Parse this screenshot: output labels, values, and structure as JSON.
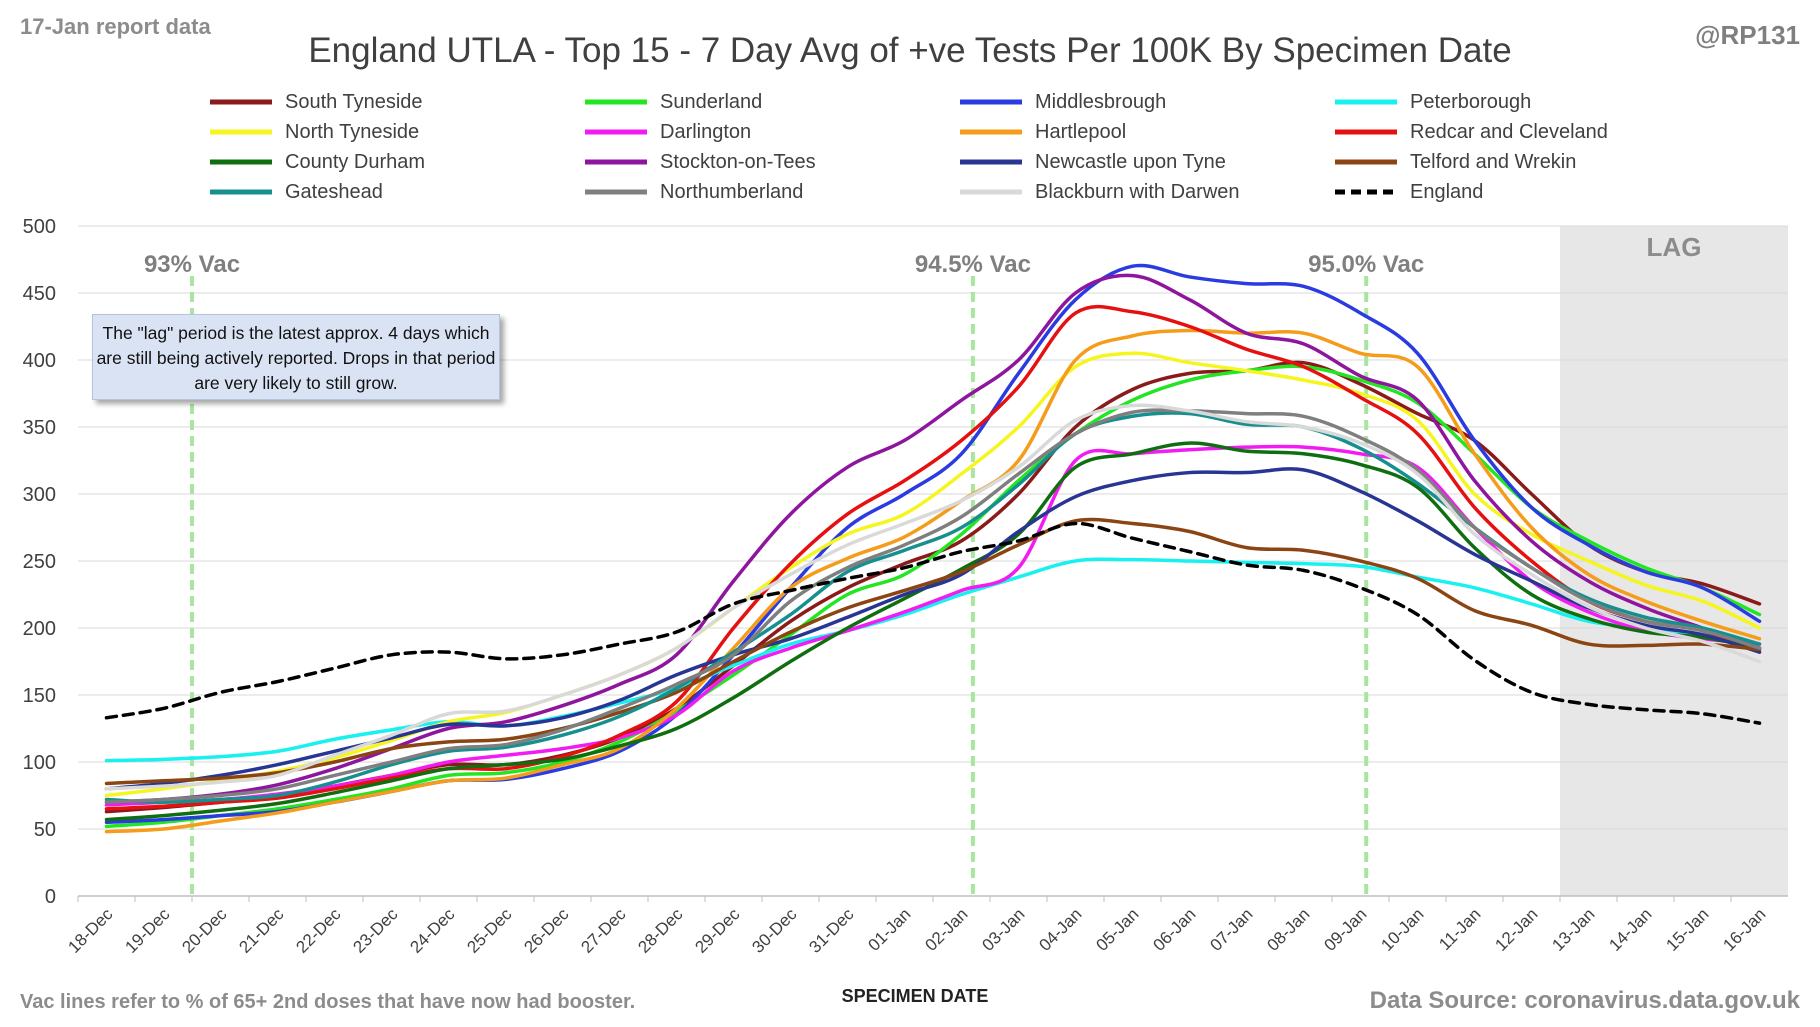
{
  "header": {
    "report_date": "17-Jan report data",
    "handle": "@RP131"
  },
  "footer": {
    "vac_note": "Vac lines refer to % of 65+ 2nd doses that have now had booster.",
    "source": "Data Source: coronavirus.data.gov.uk"
  },
  "note": "The \"lag\" period is the latest approx. 4 days which are still being actively reported.  Drops in that period are very likely to still grow.",
  "colors": {
    "grid": "#d9d9d9",
    "lag_shade": "#e7e7e7",
    "vac_line": "#a9e5a0",
    "annotation": "#8c8c8c"
  },
  "chart_data": {
    "type": "line",
    "title": "England UTLA - Top 15 - 7 Day Avg of +ve Tests Per 100K By Specimen Date",
    "xlabel": "SPECIMEN DATE",
    "ylabel": "",
    "ylim": [
      0,
      500
    ],
    "yticks": [
      0,
      50,
      100,
      150,
      200,
      250,
      300,
      350,
      400,
      450,
      500
    ],
    "grid": true,
    "legend_position": "top",
    "categories": [
      "18-Dec",
      "19-Dec",
      "20-Dec",
      "21-Dec",
      "22-Dec",
      "23-Dec",
      "24-Dec",
      "25-Dec",
      "26-Dec",
      "27-Dec",
      "28-Dec",
      "29-Dec",
      "30-Dec",
      "31-Dec",
      "01-Jan",
      "02-Jan",
      "03-Jan",
      "04-Jan",
      "05-Jan",
      "06-Jan",
      "07-Jan",
      "08-Jan",
      "09-Jan",
      "10-Jan",
      "11-Jan",
      "12-Jan",
      "13-Jan",
      "14-Jan",
      "15-Jan",
      "16-Jan"
    ],
    "vac_lines": [
      {
        "label": "93% Vac",
        "x": 19.5
      },
      {
        "label": "94.5% Vac",
        "x": 33.2
      },
      {
        "label": "95.0% Vac",
        "x": 40.1
      }
    ],
    "lag": {
      "label": "LAG",
      "from_category": "13-Jan",
      "to_category": "16-Jan"
    },
    "series": [
      {
        "name": "South Tyneside",
        "color": "#8b1a1a",
        "dash": false,
        "values": [
          63,
          66,
          70,
          74,
          82,
          90,
          98,
          98,
          105,
          118,
          140,
          172,
          205,
          230,
          248,
          265,
          300,
          350,
          378,
          390,
          392,
          398,
          382,
          360,
          340,
          300,
          262,
          242,
          233,
          218
        ]
      },
      {
        "name": "Sunderland",
        "color": "#22e622",
        "dash": false,
        "values": [
          52,
          55,
          60,
          65,
          72,
          80,
          90,
          92,
          100,
          115,
          138,
          165,
          195,
          225,
          240,
          270,
          310,
          345,
          370,
          385,
          392,
          395,
          385,
          368,
          330,
          290,
          265,
          245,
          230,
          210
        ]
      },
      {
        "name": "Middlesbrough",
        "color": "#2a3ce0",
        "dash": false,
        "values": [
          55,
          57,
          60,
          63,
          70,
          78,
          86,
          87,
          95,
          108,
          135,
          180,
          230,
          275,
          300,
          330,
          390,
          445,
          470,
          462,
          457,
          455,
          435,
          405,
          340,
          290,
          262,
          242,
          230,
          205
        ]
      },
      {
        "name": "Peterborough",
        "color": "#19f0f0",
        "dash": false,
        "values": [
          101,
          102,
          104,
          108,
          117,
          124,
          130,
          127,
          134,
          144,
          155,
          172,
          188,
          198,
          210,
          225,
          238,
          250,
          251,
          250,
          249,
          248,
          246,
          238,
          230,
          218,
          205,
          200,
          195,
          185
        ]
      },
      {
        "name": "North Tyneside",
        "color": "#f5f520",
        "dash": false,
        "values": [
          75,
          80,
          86,
          93,
          103,
          116,
          130,
          137,
          150,
          165,
          185,
          215,
          245,
          270,
          285,
          315,
          350,
          395,
          405,
          398,
          392,
          385,
          375,
          355,
          300,
          270,
          250,
          232,
          220,
          200
        ]
      },
      {
        "name": "Darlington",
        "color": "#f21cf2",
        "dash": false,
        "values": [
          68,
          70,
          72,
          76,
          82,
          90,
          100,
          105,
          110,
          118,
          135,
          168,
          185,
          198,
          212,
          228,
          245,
          325,
          330,
          333,
          335,
          335,
          330,
          320,
          275,
          235,
          212,
          198,
          192,
          188
        ]
      },
      {
        "name": "Hartlepool",
        "color": "#f59c1a",
        "dash": false,
        "values": [
          48,
          50,
          56,
          62,
          70,
          78,
          86,
          88,
          98,
          110,
          140,
          185,
          230,
          252,
          268,
          295,
          325,
          400,
          418,
          422,
          420,
          420,
          405,
          395,
          330,
          275,
          240,
          220,
          205,
          192
        ]
      },
      {
        "name": "Redcar and Cleveland",
        "color": "#e61010",
        "dash": false,
        "values": [
          65,
          67,
          70,
          73,
          80,
          88,
          95,
          95,
          104,
          120,
          145,
          200,
          248,
          285,
          310,
          340,
          380,
          435,
          436,
          425,
          408,
          395,
          372,
          345,
          290,
          250,
          220,
          205,
          198,
          182
        ]
      },
      {
        "name": "County Durham",
        "color": "#0f6e0f",
        "dash": false,
        "values": [
          57,
          60,
          64,
          69,
          77,
          86,
          95,
          98,
          102,
          112,
          125,
          148,
          175,
          200,
          222,
          244,
          270,
          320,
          330,
          338,
          332,
          330,
          322,
          305,
          260,
          225,
          207,
          197,
          193,
          185
        ]
      },
      {
        "name": "Stockton-on-Tees",
        "color": "#8e159e",
        "dash": false,
        "values": [
          70,
          72,
          76,
          83,
          95,
          110,
          125,
          130,
          142,
          158,
          180,
          235,
          285,
          320,
          340,
          370,
          400,
          450,
          463,
          445,
          420,
          412,
          388,
          370,
          310,
          265,
          235,
          215,
          200,
          185
        ]
      },
      {
        "name": "Newcastle upon Tyne",
        "color": "#283593",
        "dash": false,
        "values": [
          80,
          84,
          90,
          98,
          108,
          118,
          128,
          127,
          133,
          146,
          165,
          180,
          192,
          208,
          225,
          240,
          272,
          298,
          310,
          316,
          316,
          318,
          302,
          280,
          255,
          235,
          215,
          202,
          195,
          182
        ]
      },
      {
        "name": "Telford and Wrekin",
        "color": "#8b4513",
        "dash": false,
        "values": [
          84,
          86,
          88,
          92,
          100,
          110,
          115,
          117,
          125,
          137,
          152,
          175,
          197,
          215,
          228,
          242,
          262,
          280,
          278,
          272,
          260,
          258,
          250,
          237,
          213,
          202,
          188,
          187,
          188,
          184
        ]
      },
      {
        "name": "Gateshead",
        "color": "#168f8f",
        "dash": false,
        "values": [
          72,
          70,
          72,
          75,
          85,
          98,
          108,
          111,
          120,
          134,
          155,
          182,
          210,
          242,
          258,
          275,
          307,
          345,
          358,
          360,
          352,
          350,
          334,
          308,
          275,
          245,
          222,
          208,
          200,
          188
        ]
      },
      {
        "name": "Northumberland",
        "color": "#7f7f7f",
        "dash": false,
        "values": [
          70,
          72,
          75,
          80,
          90,
          100,
          110,
          113,
          124,
          140,
          158,
          180,
          220,
          245,
          262,
          283,
          315,
          345,
          361,
          362,
          360,
          358,
          342,
          318,
          275,
          245,
          220,
          205,
          198,
          185
        ]
      },
      {
        "name": "Blackburn with Darwen",
        "color": "#d9d9d9",
        "dash": false,
        "values": [
          80,
          82,
          85,
          90,
          105,
          120,
          136,
          138,
          150,
          165,
          185,
          215,
          240,
          262,
          278,
          295,
          320,
          355,
          366,
          362,
          354,
          350,
          338,
          315,
          270,
          240,
          216,
          200,
          190,
          175
        ]
      },
      {
        "name": "England",
        "color": "#000000",
        "dash": true,
        "values": [
          133,
          140,
          152,
          160,
          170,
          180,
          182,
          177,
          180,
          188,
          197,
          218,
          228,
          237,
          245,
          257,
          265,
          278,
          267,
          257,
          247,
          243,
          230,
          210,
          176,
          152,
          143,
          139,
          136,
          129
        ]
      }
    ]
  }
}
